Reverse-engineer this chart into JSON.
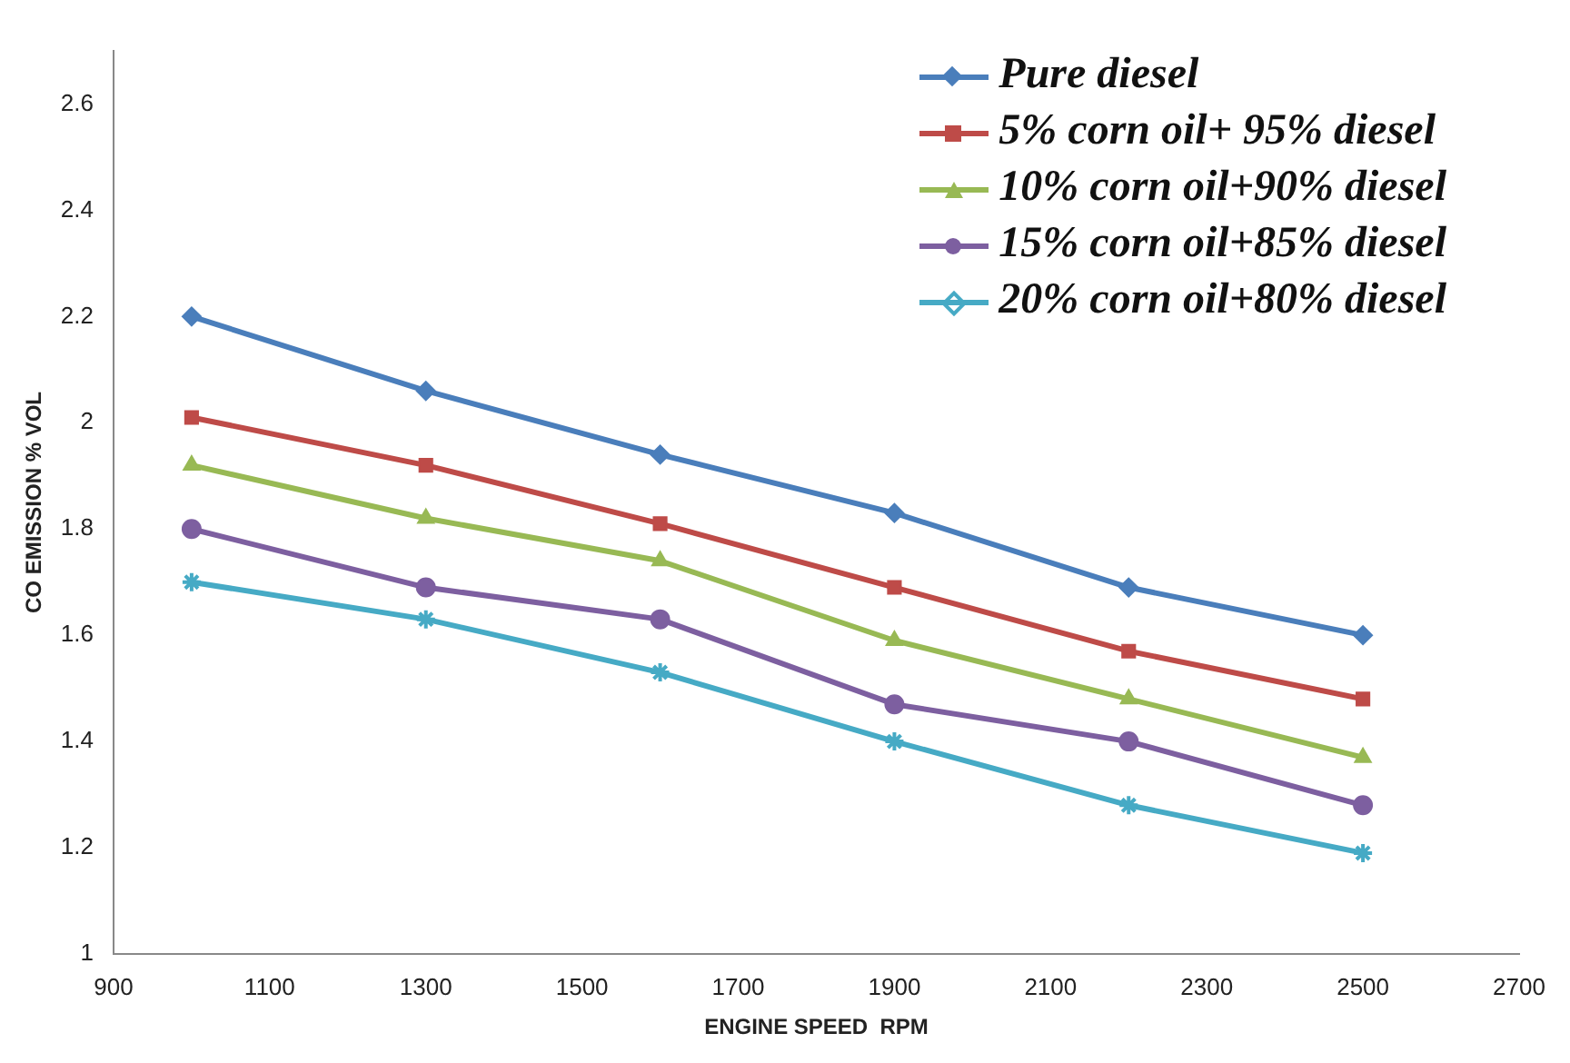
{
  "chart_data": {
    "type": "line",
    "xlabel": "ENGINE SPEED  RPM",
    "ylabel": "CO EMISSION % VOL",
    "x": [
      1000,
      1300,
      1600,
      1900,
      2200,
      2500
    ],
    "xlim": [
      900,
      2700
    ],
    "xticks": [
      900,
      1100,
      1300,
      1500,
      1700,
      1900,
      2100,
      2300,
      2500,
      2700
    ],
    "ylim": [
      1,
      2.7
    ],
    "yticks": [
      {
        "value": 1,
        "label": "1"
      },
      {
        "value": 1.2,
        "label": "1.2"
      },
      {
        "value": 1.4,
        "label": "1.4"
      },
      {
        "value": 1.6,
        "label": "1.6"
      },
      {
        "value": 1.8,
        "label": "1.8"
      },
      {
        "value": 2,
        "label": "2"
      },
      {
        "value": 2.2,
        "label": "2.2"
      },
      {
        "value": 2.4,
        "label": "2.4"
      },
      {
        "value": 2.6,
        "label": "2.6"
      }
    ],
    "grid": false,
    "legend": "top right",
    "line_style": "solid",
    "series": [
      {
        "name": "Pure diesel",
        "color": "#4a7ebb",
        "marker": "diamond",
        "values": [
          2.2,
          2.06,
          1.94,
          1.83,
          1.69,
          1.6
        ]
      },
      {
        "name": "5% corn oil+ 95% diesel",
        "color": "#be4b48",
        "marker": "square",
        "values": [
          2.01,
          1.92,
          1.81,
          1.69,
          1.57,
          1.48
        ]
      },
      {
        "name": "10% corn oil+90% diesel",
        "color": "#98b954",
        "marker": "triangle",
        "values": [
          1.92,
          1.82,
          1.74,
          1.59,
          1.48,
          1.37
        ]
      },
      {
        "name": "15% corn oil+85% diesel",
        "color": "#7d5fa0",
        "marker": "circle",
        "values": [
          1.8,
          1.69,
          1.63,
          1.47,
          1.4,
          1.28
        ]
      },
      {
        "name": "20% corn oil+80% diesel",
        "color": "#46aac5",
        "marker": "cross",
        "values": [
          1.7,
          1.63,
          1.53,
          1.4,
          1.28,
          1.19
        ]
      }
    ]
  }
}
